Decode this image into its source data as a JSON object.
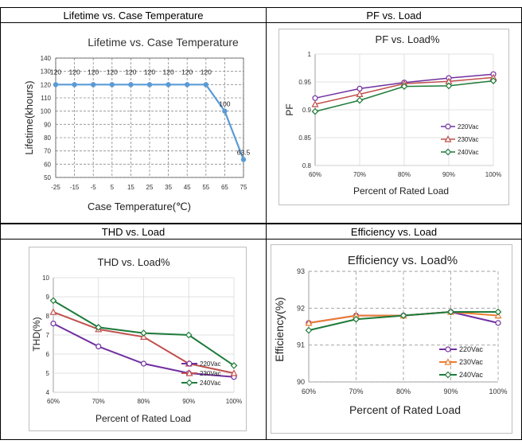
{
  "headers": {
    "lifetime": "Lifetime vs. Case Temperature",
    "pf": "PF vs. Load",
    "thd": "THD vs. Load",
    "eff": "Efficiency vs. Load"
  },
  "chart_data": [
    {
      "id": "lifetime",
      "type": "line",
      "title": "Lifetime vs. Case Temperature",
      "xlabel": "Case Temperature(℃)",
      "ylabel": "Lifetime(khours)",
      "x": [
        -25,
        -15,
        -5,
        5,
        15,
        25,
        35,
        45,
        55,
        65,
        75
      ],
      "xticks": [
        "-25",
        "-15",
        "-5",
        "5",
        "15",
        "25",
        "35",
        "45",
        "55",
        "65",
        "75"
      ],
      "values": [
        120,
        120,
        120,
        120,
        120,
        120,
        120,
        120,
        120,
        100,
        63.5
      ],
      "labels": [
        "120",
        "120",
        "120",
        "120",
        "120",
        "120",
        "120",
        "120",
        "120",
        "100",
        "63.5"
      ],
      "ylim": [
        50,
        140
      ],
      "yticks": [
        "50",
        "60",
        "70",
        "80",
        "90",
        "100",
        "110",
        "120",
        "130",
        "140"
      ],
      "color": "#5b9bd5"
    },
    {
      "id": "pf",
      "type": "line",
      "title": "PF vs. Load%",
      "xlabel": "Percent of Rated Load",
      "ylabel": "PF",
      "categories": [
        "60%",
        "70%",
        "80%",
        "90%",
        "100%"
      ],
      "ylim": [
        0.8,
        1.0
      ],
      "yticks": [
        "0.8",
        "0.85",
        "0.9",
        "0.95",
        "1"
      ],
      "series": [
        {
          "name": "220Vac",
          "values": [
            0.921,
            0.938,
            0.949,
            0.957,
            0.964
          ],
          "color": "#7030a0"
        },
        {
          "name": "230Vac",
          "values": [
            0.91,
            0.928,
            0.947,
            0.951,
            0.958
          ],
          "color": "#c0504d"
        },
        {
          "name": "240Vac",
          "values": [
            0.897,
            0.917,
            0.942,
            0.943,
            0.952
          ],
          "color": "#1e7b3a"
        }
      ]
    },
    {
      "id": "thd",
      "type": "line",
      "title": "THD vs. Load%",
      "xlabel": "Percent of Rated Load",
      "ylabel": "THD(%)",
      "categories": [
        "60%",
        "70%",
        "80%",
        "90%",
        "100%"
      ],
      "ylim": [
        4,
        10
      ],
      "yticks": [
        "4",
        "5",
        "6",
        "7",
        "8",
        "9",
        "10"
      ],
      "series": [
        {
          "name": "220Vac",
          "values": [
            7.6,
            6.4,
            5.5,
            5.0,
            4.8
          ],
          "color": "#7030a0"
        },
        {
          "name": "230Vac",
          "values": [
            8.2,
            7.3,
            6.9,
            5.5,
            5.0
          ],
          "color": "#c0504d"
        },
        {
          "name": "240Vac",
          "values": [
            8.8,
            7.4,
            7.1,
            7.0,
            5.4
          ],
          "color": "#1e7b3a"
        }
      ]
    },
    {
      "id": "eff",
      "type": "line",
      "title": "Efficiency vs. Load%",
      "xlabel": "Percent of Rated Load",
      "ylabel": "Efficiency(%)",
      "categories": [
        "60%",
        "70%",
        "80%",
        "90%",
        "100%"
      ],
      "ylim": [
        90,
        93
      ],
      "yticks": [
        "90",
        "91",
        "92",
        "93"
      ],
      "series": [
        {
          "name": "220Vac",
          "values": [
            91.6,
            91.8,
            91.8,
            91.9,
            91.6
          ],
          "color": "#7030a0"
        },
        {
          "name": "230Vac",
          "values": [
            91.6,
            91.8,
            91.8,
            91.9,
            91.8
          ],
          "color": "#ed7d31"
        },
        {
          "name": "240Vac",
          "values": [
            91.4,
            91.7,
            91.8,
            91.9,
            91.9
          ],
          "color": "#1e7b3a"
        }
      ]
    }
  ]
}
